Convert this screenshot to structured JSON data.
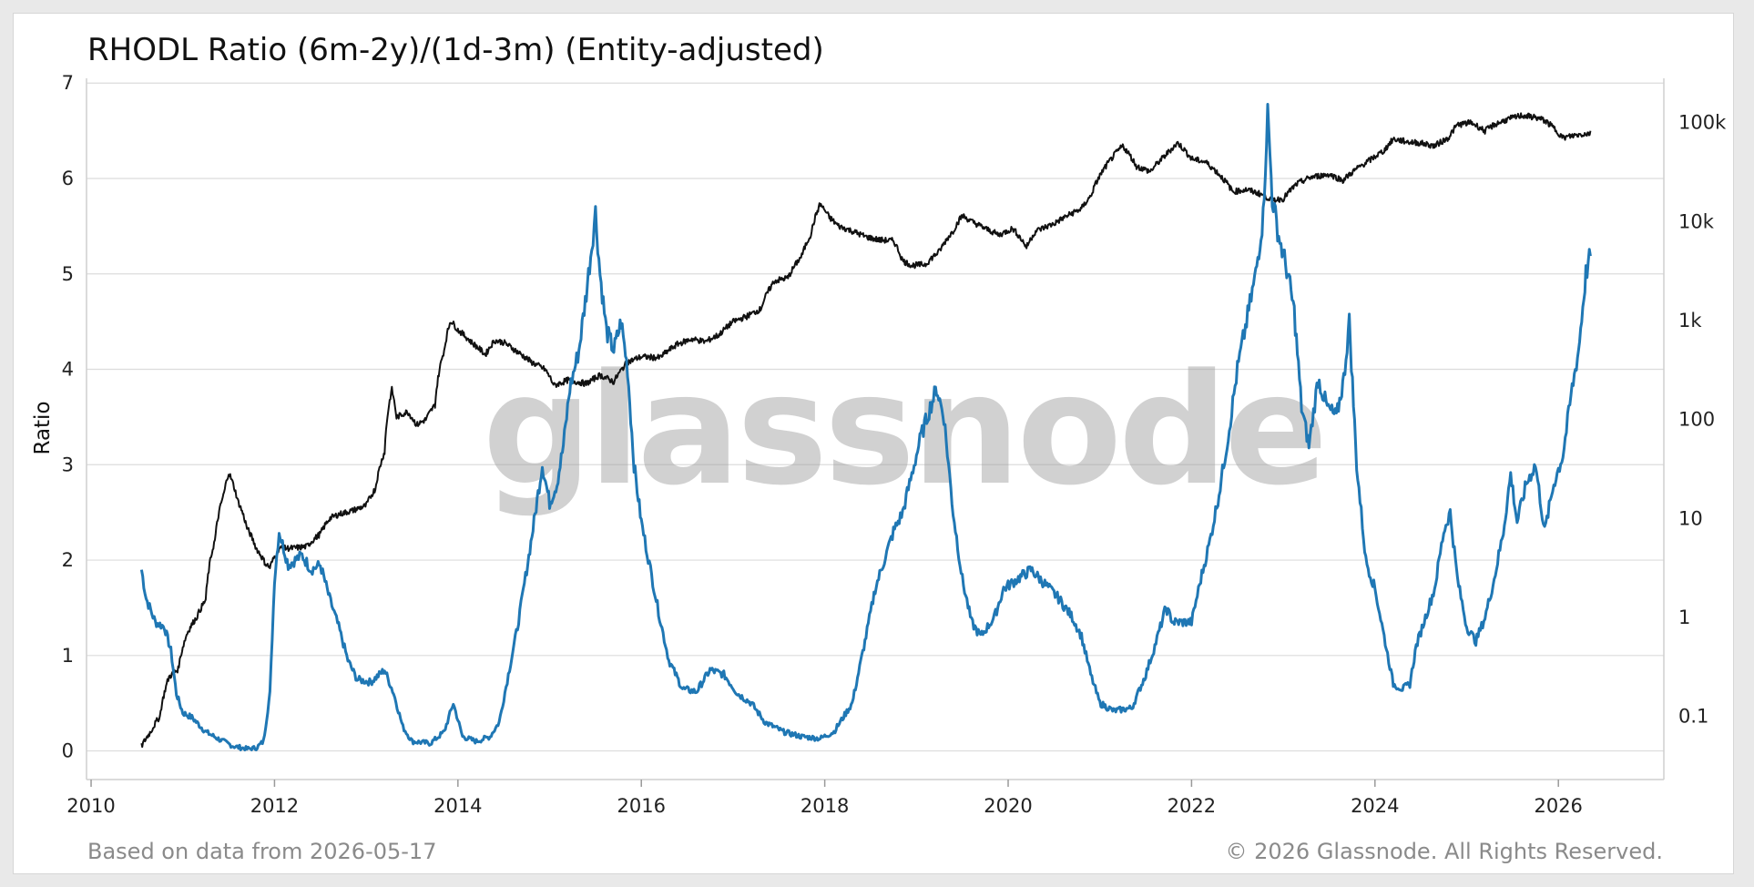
{
  "colors": {
    "ratio": "#1f77b4",
    "price": "#111111",
    "grid": "#dcdcdc",
    "footer": "#8a8a8a"
  },
  "chart_data": {
    "type": "line",
    "title": "RHODL Ratio (6m-2y)/(1d-3m) (Entity-adjusted)",
    "ylabel": "Ratio",
    "ylim": [
      -0.3,
      7.05
    ],
    "yticks": [
      "0",
      "1",
      "2",
      "3",
      "4",
      "5",
      "6",
      "7"
    ],
    "y2_scale": "log",
    "y2lim": [
      0.023,
      280000
    ],
    "y2ticks": [
      "0.1",
      "1",
      "10",
      "100",
      "1k",
      "10k",
      "100k"
    ],
    "xlim": [
      2009.95,
      2027.15
    ],
    "xticks": [
      "2010",
      "2012",
      "2014",
      "2016",
      "2018",
      "2020",
      "2022",
      "2024",
      "2026"
    ],
    "grid": "horizontal",
    "watermark": "glassnode",
    "series": [
      {
        "axis": "left",
        "color": "#1f77b4",
        "points": [
          [
            2010.55,
            1.9
          ],
          [
            2010.6,
            1.6
          ],
          [
            2010.7,
            1.35
          ],
          [
            2010.8,
            1.3
          ],
          [
            2010.87,
            1.05
          ],
          [
            2010.93,
            0.6
          ],
          [
            2011.0,
            0.4
          ],
          [
            2011.1,
            0.35
          ],
          [
            2011.25,
            0.2
          ],
          [
            2011.4,
            0.12
          ],
          [
            2011.55,
            0.05
          ],
          [
            2011.7,
            0.02
          ],
          [
            2011.8,
            0.03
          ],
          [
            2011.88,
            0.1
          ],
          [
            2011.95,
            0.6
          ],
          [
            2012.0,
            1.8
          ],
          [
            2012.05,
            2.3
          ],
          [
            2012.15,
            1.95
          ],
          [
            2012.3,
            2.05
          ],
          [
            2012.4,
            1.9
          ],
          [
            2012.5,
            1.95
          ],
          [
            2012.6,
            1.6
          ],
          [
            2012.7,
            1.3
          ],
          [
            2012.8,
            0.95
          ],
          [
            2012.9,
            0.75
          ],
          [
            2013.05,
            0.72
          ],
          [
            2013.2,
            0.85
          ],
          [
            2013.3,
            0.6
          ],
          [
            2013.4,
            0.25
          ],
          [
            2013.5,
            0.1
          ],
          [
            2013.7,
            0.08
          ],
          [
            2013.85,
            0.2
          ],
          [
            2013.95,
            0.5
          ],
          [
            2014.05,
            0.15
          ],
          [
            2014.2,
            0.1
          ],
          [
            2014.35,
            0.15
          ],
          [
            2014.45,
            0.3
          ],
          [
            2014.55,
            0.8
          ],
          [
            2014.65,
            1.3
          ],
          [
            2014.75,
            1.9
          ],
          [
            2014.83,
            2.4
          ],
          [
            2014.92,
            3.0
          ],
          [
            2015.0,
            2.6
          ],
          [
            2015.08,
            2.8
          ],
          [
            2015.15,
            3.2
          ],
          [
            2015.22,
            3.8
          ],
          [
            2015.32,
            4.2
          ],
          [
            2015.4,
            4.8
          ],
          [
            2015.46,
            5.3
          ],
          [
            2015.5,
            5.65
          ],
          [
            2015.55,
            5.0
          ],
          [
            2015.62,
            4.4
          ],
          [
            2015.7,
            4.2
          ],
          [
            2015.78,
            4.5
          ],
          [
            2015.85,
            4.0
          ],
          [
            2015.92,
            3.0
          ],
          [
            2016.0,
            2.4
          ],
          [
            2016.1,
            1.9
          ],
          [
            2016.2,
            1.4
          ],
          [
            2016.3,
            0.95
          ],
          [
            2016.45,
            0.65
          ],
          [
            2016.6,
            0.62
          ],
          [
            2016.75,
            0.85
          ],
          [
            2016.9,
            0.8
          ],
          [
            2017.05,
            0.6
          ],
          [
            2017.2,
            0.5
          ],
          [
            2017.35,
            0.3
          ],
          [
            2017.55,
            0.2
          ],
          [
            2017.75,
            0.15
          ],
          [
            2017.95,
            0.13
          ],
          [
            2018.1,
            0.2
          ],
          [
            2018.3,
            0.5
          ],
          [
            2018.45,
            1.2
          ],
          [
            2018.55,
            1.7
          ],
          [
            2018.65,
            2.0
          ],
          [
            2018.75,
            2.3
          ],
          [
            2018.85,
            2.5
          ],
          [
            2018.95,
            2.9
          ],
          [
            2019.05,
            3.3
          ],
          [
            2019.15,
            3.6
          ],
          [
            2019.22,
            3.8
          ],
          [
            2019.3,
            3.5
          ],
          [
            2019.4,
            2.5
          ],
          [
            2019.5,
            1.8
          ],
          [
            2019.6,
            1.35
          ],
          [
            2019.7,
            1.2
          ],
          [
            2019.85,
            1.4
          ],
          [
            2019.95,
            1.7
          ],
          [
            2020.1,
            1.8
          ],
          [
            2020.25,
            1.9
          ],
          [
            2020.4,
            1.75
          ],
          [
            2020.55,
            1.6
          ],
          [
            2020.7,
            1.4
          ],
          [
            2020.8,
            1.2
          ],
          [
            2020.9,
            0.8
          ],
          [
            2021.0,
            0.5
          ],
          [
            2021.15,
            0.42
          ],
          [
            2021.35,
            0.45
          ],
          [
            2021.5,
            0.8
          ],
          [
            2021.6,
            1.1
          ],
          [
            2021.72,
            1.5
          ],
          [
            2021.8,
            1.35
          ],
          [
            2022.0,
            1.35
          ],
          [
            2022.1,
            1.8
          ],
          [
            2022.2,
            2.2
          ],
          [
            2022.3,
            2.7
          ],
          [
            2022.4,
            3.3
          ],
          [
            2022.5,
            4.0
          ],
          [
            2022.6,
            4.5
          ],
          [
            2022.7,
            5.0
          ],
          [
            2022.78,
            5.6
          ],
          [
            2022.83,
            6.7
          ],
          [
            2022.88,
            5.8
          ],
          [
            2022.95,
            5.4
          ],
          [
            2023.05,
            5.0
          ],
          [
            2023.12,
            4.6
          ],
          [
            2023.2,
            3.6
          ],
          [
            2023.28,
            3.2
          ],
          [
            2023.38,
            3.9
          ],
          [
            2023.48,
            3.6
          ],
          [
            2023.58,
            3.5
          ],
          [
            2023.66,
            3.9
          ],
          [
            2023.72,
            4.5
          ],
          [
            2023.8,
            3.0
          ],
          [
            2023.9,
            2.0
          ],
          [
            2024.0,
            1.7
          ],
          [
            2024.1,
            1.2
          ],
          [
            2024.2,
            0.7
          ],
          [
            2024.3,
            0.65
          ],
          [
            2024.38,
            0.7
          ],
          [
            2024.45,
            1.1
          ],
          [
            2024.55,
            1.4
          ],
          [
            2024.65,
            1.7
          ],
          [
            2024.75,
            2.3
          ],
          [
            2024.82,
            2.5
          ],
          [
            2024.9,
            1.8
          ],
          [
            2025.0,
            1.3
          ],
          [
            2025.1,
            1.15
          ],
          [
            2025.2,
            1.4
          ],
          [
            2025.3,
            1.8
          ],
          [
            2025.4,
            2.3
          ],
          [
            2025.48,
            2.9
          ],
          [
            2025.55,
            2.4
          ],
          [
            2025.65,
            2.8
          ],
          [
            2025.75,
            3.0
          ],
          [
            2025.85,
            2.3
          ],
          [
            2025.95,
            2.8
          ],
          [
            2026.05,
            3.1
          ],
          [
            2026.15,
            3.8
          ],
          [
            2026.22,
            4.2
          ],
          [
            2026.3,
            5.0
          ],
          [
            2026.35,
            5.2
          ]
        ]
      },
      {
        "axis": "right",
        "color": "#111111",
        "points": [
          [
            2010.55,
            0.05
          ],
          [
            2010.65,
            0.07
          ],
          [
            2010.75,
            0.1
          ],
          [
            2010.85,
            0.25
          ],
          [
            2010.95,
            0.3
          ],
          [
            2011.05,
            0.7
          ],
          [
            2011.15,
            1.0
          ],
          [
            2011.25,
            1.5
          ],
          [
            2011.35,
            6
          ],
          [
            2011.45,
            18
          ],
          [
            2011.5,
            29
          ],
          [
            2011.6,
            15
          ],
          [
            2011.7,
            8
          ],
          [
            2011.8,
            5
          ],
          [
            2011.9,
            3.5
          ],
          [
            2011.95,
            3.2
          ],
          [
            2012.05,
            5
          ],
          [
            2012.2,
            5
          ],
          [
            2012.35,
            5.2
          ],
          [
            2012.5,
            7
          ],
          [
            2012.6,
            10
          ],
          [
            2012.7,
            11
          ],
          [
            2012.85,
            12
          ],
          [
            2013.0,
            13.5
          ],
          [
            2013.1,
            20
          ],
          [
            2013.2,
            47
          ],
          [
            2013.28,
            200
          ],
          [
            2013.33,
            105
          ],
          [
            2013.45,
            120
          ],
          [
            2013.55,
            88
          ],
          [
            2013.65,
            100
          ],
          [
            2013.75,
            140
          ],
          [
            2013.85,
            500
          ],
          [
            2013.92,
            1000
          ],
          [
            2014.0,
            800
          ],
          [
            2014.15,
            600
          ],
          [
            2014.3,
            450
          ],
          [
            2014.4,
            630
          ],
          [
            2014.5,
            600
          ],
          [
            2014.65,
            480
          ],
          [
            2014.8,
            380
          ],
          [
            2014.95,
            320
          ],
          [
            2015.05,
            220
          ],
          [
            2015.2,
            250
          ],
          [
            2015.4,
            230
          ],
          [
            2015.55,
            280
          ],
          [
            2015.7,
            240
          ],
          [
            2015.85,
            380
          ],
          [
            2016.0,
            430
          ],
          [
            2016.2,
            420
          ],
          [
            2016.4,
            580
          ],
          [
            2016.55,
            650
          ],
          [
            2016.7,
            610
          ],
          [
            2016.85,
            720
          ],
          [
            2017.0,
            970
          ],
          [
            2017.15,
            1100
          ],
          [
            2017.3,
            1300
          ],
          [
            2017.45,
            2500
          ],
          [
            2017.6,
            2700
          ],
          [
            2017.75,
            4500
          ],
          [
            2017.85,
            7500
          ],
          [
            2017.95,
            15000
          ],
          [
            2018.05,
            11000
          ],
          [
            2018.15,
            9000
          ],
          [
            2018.3,
            8000
          ],
          [
            2018.45,
            7000
          ],
          [
            2018.6,
            6500
          ],
          [
            2018.75,
            6400
          ],
          [
            2018.85,
            4000
          ],
          [
            2018.95,
            3600
          ],
          [
            2019.1,
            3700
          ],
          [
            2019.25,
            5000
          ],
          [
            2019.4,
            8000
          ],
          [
            2019.5,
            11500
          ],
          [
            2019.6,
            10000
          ],
          [
            2019.75,
            8500
          ],
          [
            2019.9,
            7300
          ],
          [
            2020.05,
            8500
          ],
          [
            2020.2,
            5500
          ],
          [
            2020.3,
            8000
          ],
          [
            2020.5,
            9500
          ],
          [
            2020.65,
            11500
          ],
          [
            2020.8,
            13500
          ],
          [
            2020.9,
            18000
          ],
          [
            2021.0,
            29000
          ],
          [
            2021.1,
            40000
          ],
          [
            2021.25,
            58000
          ],
          [
            2021.4,
            36000
          ],
          [
            2021.55,
            32000
          ],
          [
            2021.7,
            45000
          ],
          [
            2021.85,
            62000
          ],
          [
            2022.0,
            43000
          ],
          [
            2022.15,
            40000
          ],
          [
            2022.3,
            30000
          ],
          [
            2022.45,
            20000
          ],
          [
            2022.6,
            21000
          ],
          [
            2022.75,
            19000
          ],
          [
            2022.88,
            16500
          ],
          [
            2023.0,
            17000
          ],
          [
            2023.15,
            24000
          ],
          [
            2023.3,
            28000
          ],
          [
            2023.5,
            30000
          ],
          [
            2023.65,
            26000
          ],
          [
            2023.8,
            34000
          ],
          [
            2023.95,
            42000
          ],
          [
            2024.1,
            52000
          ],
          [
            2024.2,
            68000
          ],
          [
            2024.35,
            64000
          ],
          [
            2024.5,
            62000
          ],
          [
            2024.65,
            58000
          ],
          [
            2024.8,
            70000
          ],
          [
            2024.9,
            95000
          ],
          [
            2025.05,
            100000
          ],
          [
            2025.2,
            82000
          ],
          [
            2025.3,
            95000
          ],
          [
            2025.45,
            108000
          ],
          [
            2025.6,
            118000
          ],
          [
            2025.75,
            113000
          ],
          [
            2025.85,
            105000
          ],
          [
            2025.95,
            88000
          ],
          [
            2026.05,
            70000
          ],
          [
            2026.2,
            75000
          ],
          [
            2026.35,
            78000
          ]
        ]
      }
    ]
  },
  "footer": {
    "left": "Based on data from 2026-05-17",
    "right": "© 2026 Glassnode. All Rights Reserved."
  }
}
